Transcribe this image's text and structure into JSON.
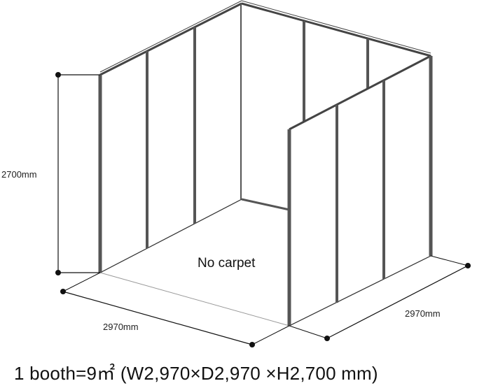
{
  "dimensions": {
    "height_label": "2700mm",
    "width_label": "2970mm",
    "depth_label": "2970mm"
  },
  "floor_label": "No carpet",
  "caption": "1 booth=9㎡ (W2,970×D2,970 ×H2,700 mm)"
}
